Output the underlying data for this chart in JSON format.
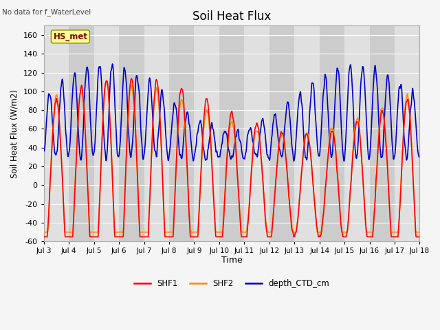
{
  "title": "Soil Heat Flux",
  "ylabel": "Soil Heat Flux (W/m2)",
  "xlabel": "Time",
  "watermark_text": "No data for f_WaterLevel",
  "station_label": "HS_met",
  "ylim": [
    -60,
    170
  ],
  "yticks": [
    -60,
    -40,
    -20,
    0,
    20,
    40,
    60,
    80,
    100,
    120,
    140,
    160
  ],
  "xlim": [
    3,
    18
  ],
  "xtick_positions": [
    3,
    4,
    5,
    6,
    7,
    8,
    9,
    10,
    11,
    12,
    13,
    14,
    15,
    16,
    17,
    18
  ],
  "xtick_labels": [
    "Jul 3",
    "Jul 4",
    "Jul 5",
    "Jul 6",
    "Jul 7",
    "Jul 8",
    "Jul 9",
    "Jul 10",
    "Jul 11",
    "Jul 12",
    "Jul 13",
    "Jul 14",
    "Jul 15",
    "Jul 16",
    "Jul 17",
    "Jul 18"
  ],
  "colors": {
    "SHF1": "#ff0000",
    "SHF2": "#ff8800",
    "depth_CTD_cm": "#0000cc",
    "bg_light": "#e0e0e0",
    "bg_dark": "#cccccc",
    "grid": "#ffffff",
    "station_box_bg": "#ffff99",
    "station_box_edge": "#999900",
    "station_text": "#880000",
    "fig_bg": "#f5f5f5"
  },
  "line_width": 1.2,
  "pts_per_day": 96,
  "n_days": 15,
  "seed": 1234
}
